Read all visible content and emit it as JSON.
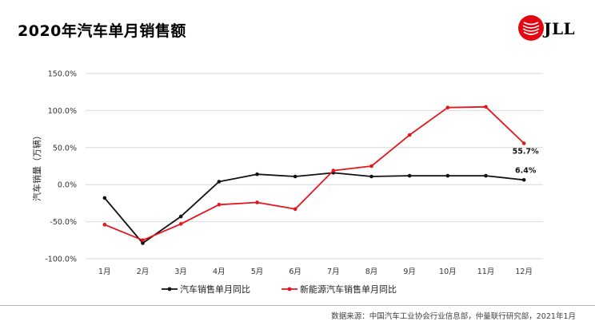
{
  "page": {
    "title": "2020年汽车单月销售额",
    "logo_text": "JLL",
    "source": "数据来源：中国汽车工业协会行业信息部，仲量联行研究部，2021年1月"
  },
  "colors": {
    "series_black": "#111111",
    "series_red": "#e8141c",
    "grid": "#d9d9d9",
    "logo_red": "#e30613"
  },
  "chart_data": {
    "type": "line",
    "title": "2020年汽车单月销售额",
    "ylabel": "汽车销量（万辆）",
    "xlabel": "",
    "categories": [
      "1月",
      "2月",
      "3月",
      "4月",
      "5月",
      "6月",
      "7月",
      "8月",
      "9月",
      "10月",
      "11月",
      "12月"
    ],
    "y_ticks": [
      "150.0%",
      "100.0%",
      "50.0%",
      "0.0%",
      "-50.0%",
      "-100.0%"
    ],
    "ylim": [
      -100,
      150
    ],
    "grid": "horizontal",
    "legend_position": "bottom",
    "series": [
      {
        "name": "汽车销售单月同比",
        "color": "#111111",
        "values": [
          -18,
          -79,
          -43,
          4,
          14,
          11,
          16,
          11,
          12,
          12,
          12,
          6.4
        ]
      },
      {
        "name": "新能源汽车销售单月同比",
        "color": "#e8141c",
        "values": [
          -54,
          -75,
          -53,
          -27,
          -24,
          -33,
          19,
          25,
          67,
          104,
          105,
          55.7
        ]
      }
    ],
    "annotations": [
      {
        "series": 1,
        "index": 11,
        "text": "55.7%"
      },
      {
        "series": 0,
        "index": 11,
        "text": "6.4%"
      }
    ]
  }
}
